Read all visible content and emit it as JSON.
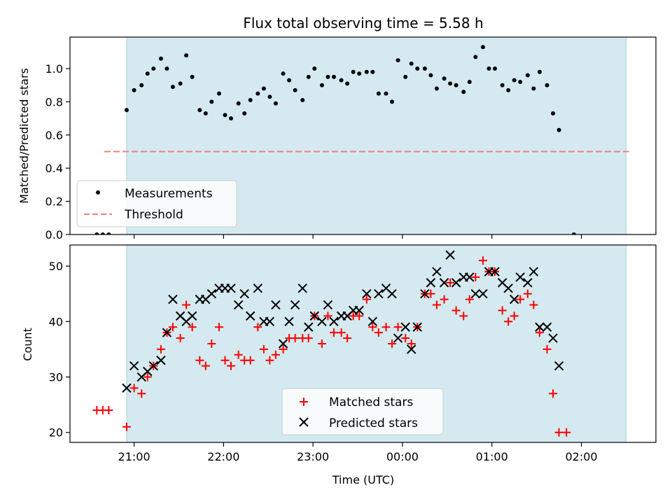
{
  "chart_data": [
    {
      "type": "scatter",
      "title": "Flux total observing time = 5.58 h",
      "xlabel": "",
      "ylabel": "Matched/Predicted stars",
      "ylim": [
        0,
        1.19
      ],
      "yticks": [
        "0.0",
        "0.2",
        "0.4",
        "0.6",
        "0.8",
        "1.0"
      ],
      "x_ticks": [
        "21:00",
        "22:00",
        "23:00",
        "00:00",
        "01:00",
        "02:00"
      ],
      "shaded_range": [
        "20:55",
        "02:30"
      ],
      "threshold": 0.5,
      "legend": {
        "placement": "lower-left",
        "entries": [
          "Measurements",
          "Threshold"
        ]
      },
      "colors": {
        "shade": "#d4eaf0",
        "threshold": "#f08080",
        "measurements": "#000000"
      },
      "series": [
        {
          "name": "Measurements",
          "points": [
            [
              "20:35",
              0.0
            ],
            [
              "20:39",
              0.0
            ],
            [
              "20:43",
              0.0
            ],
            [
              "20:55",
              0.75
            ],
            [
              "21:00",
              0.87
            ],
            [
              "21:05",
              0.9
            ],
            [
              "21:09",
              0.97
            ],
            [
              "21:13",
              1.0
            ],
            [
              "21:18",
              1.06
            ],
            [
              "21:22",
              1.0
            ],
            [
              "21:26",
              0.89
            ],
            [
              "21:31",
              0.91
            ],
            [
              "21:35",
              1.08
            ],
            [
              "21:39",
              0.95
            ],
            [
              "21:44",
              0.75
            ],
            [
              "21:48",
              0.73
            ],
            [
              "21:52",
              0.8
            ],
            [
              "21:57",
              0.85
            ],
            [
              "22:01",
              0.72
            ],
            [
              "22:05",
              0.7
            ],
            [
              "22:10",
              0.79
            ],
            [
              "22:14",
              0.73
            ],
            [
              "22:18",
              0.81
            ],
            [
              "22:23",
              0.85
            ],
            [
              "22:27",
              0.88
            ],
            [
              "22:31",
              0.83
            ],
            [
              "22:35",
              0.79
            ],
            [
              "22:40",
              0.97
            ],
            [
              "22:44",
              0.93
            ],
            [
              "22:48",
              0.87
            ],
            [
              "22:53",
              0.81
            ],
            [
              "22:57",
              0.95
            ],
            [
              "23:01",
              1.0
            ],
            [
              "23:06",
              0.9
            ],
            [
              "23:10",
              0.95
            ],
            [
              "23:14",
              0.95
            ],
            [
              "23:19",
              0.93
            ],
            [
              "23:23",
              0.91
            ],
            [
              "23:27",
              0.98
            ],
            [
              "23:31",
              0.97
            ],
            [
              "23:36",
              0.98
            ],
            [
              "23:40",
              0.98
            ],
            [
              "23:44",
              0.85
            ],
            [
              "23:49",
              0.85
            ],
            [
              "23:53",
              0.8
            ],
            [
              "23:57",
              1.05
            ],
            [
              "00:02",
              0.95
            ],
            [
              "00:06",
              1.03
            ],
            [
              "00:10",
              1.0
            ],
            [
              "00:15",
              1.0
            ],
            [
              "00:19",
              0.96
            ],
            [
              "00:23",
              0.88
            ],
            [
              "00:28",
              0.94
            ],
            [
              "00:32",
              0.91
            ],
            [
              "00:36",
              0.9
            ],
            [
              "00:41",
              0.86
            ],
            [
              "00:45",
              0.92
            ],
            [
              "00:49",
              1.07
            ],
            [
              "00:54",
              1.13
            ],
            [
              "00:58",
              1.0
            ],
            [
              "01:02",
              1.0
            ],
            [
              "01:07",
              0.9
            ],
            [
              "01:11",
              0.87
            ],
            [
              "01:15",
              0.93
            ],
            [
              "01:19",
              0.92
            ],
            [
              "01:24",
              0.96
            ],
            [
              "01:28",
              0.88
            ],
            [
              "01:32",
              0.98
            ],
            [
              "01:37",
              0.9
            ],
            [
              "01:41",
              0.73
            ],
            [
              "01:45",
              0.63
            ],
            [
              "01:55",
              0.0
            ]
          ]
        }
      ]
    },
    {
      "type": "scatter",
      "title": "",
      "xlabel": "Time (UTC)",
      "ylabel": "Count",
      "ylim": [
        18.2,
        53.8
      ],
      "yticks": [
        "20",
        "30",
        "40",
        "50"
      ],
      "x_ticks": [
        "21:00",
        "22:00",
        "23:00",
        "00:00",
        "01:00",
        "02:00"
      ],
      "shaded_range": [
        "20:55",
        "02:30"
      ],
      "legend": {
        "placement": "lower-center",
        "entries": [
          "Matched stars",
          "Predicted stars"
        ]
      },
      "colors": {
        "shade": "#d4eaf0",
        "matched": "#ff0000",
        "predicted": "#000000"
      },
      "series": [
        {
          "name": "Matched stars",
          "marker": "+",
          "points": [
            [
              "20:35",
              24
            ],
            [
              "20:39",
              24
            ],
            [
              "20:43",
              24
            ],
            [
              "20:55",
              21
            ],
            [
              "21:00",
              28
            ],
            [
              "21:05",
              27
            ],
            [
              "21:09",
              30
            ],
            [
              "21:13",
              32
            ],
            [
              "21:18",
              35
            ],
            [
              "21:22",
              38
            ],
            [
              "21:26",
              39
            ],
            [
              "21:31",
              37
            ],
            [
              "21:35",
              43
            ],
            [
              "21:39",
              39
            ],
            [
              "21:44",
              33
            ],
            [
              "21:48",
              32
            ],
            [
              "21:52",
              36
            ],
            [
              "21:57",
              39
            ],
            [
              "22:01",
              33
            ],
            [
              "22:05",
              32
            ],
            [
              "22:10",
              34
            ],
            [
              "22:14",
              33
            ],
            [
              "22:18",
              33
            ],
            [
              "22:23",
              39
            ],
            [
              "22:27",
              35
            ],
            [
              "22:31",
              33
            ],
            [
              "22:35",
              34
            ],
            [
              "22:40",
              35
            ],
            [
              "22:44",
              37
            ],
            [
              "22:48",
              37
            ],
            [
              "22:53",
              37
            ],
            [
              "22:57",
              37
            ],
            [
              "23:01",
              41
            ],
            [
              "23:06",
              36
            ],
            [
              "23:10",
              41
            ],
            [
              "23:14",
              38
            ],
            [
              "23:19",
              38
            ],
            [
              "23:23",
              37
            ],
            [
              "23:27",
              41
            ],
            [
              "23:31",
              41
            ],
            [
              "23:36",
              44
            ],
            [
              "23:40",
              39
            ],
            [
              "23:44",
              38
            ],
            [
              "23:49",
              39
            ],
            [
              "23:53",
              36
            ],
            [
              "23:57",
              39
            ],
            [
              "00:02",
              37
            ],
            [
              "00:06",
              36
            ],
            [
              "00:10",
              39
            ],
            [
              "00:15",
              45
            ],
            [
              "00:19",
              45
            ],
            [
              "00:23",
              43
            ],
            [
              "00:28",
              44
            ],
            [
              "00:32",
              47
            ],
            [
              "00:36",
              42
            ],
            [
              "00:41",
              41
            ],
            [
              "00:45",
              44
            ],
            [
              "00:49",
              48
            ],
            [
              "00:54",
              51
            ],
            [
              "00:58",
              49
            ],
            [
              "01:02",
              49
            ],
            [
              "01:07",
              42
            ],
            [
              "01:11",
              40
            ],
            [
              "01:15",
              41
            ],
            [
              "01:19",
              44
            ],
            [
              "01:24",
              45
            ],
            [
              "01:28",
              43
            ],
            [
              "01:32",
              38
            ],
            [
              "01:37",
              35
            ],
            [
              "01:41",
              27
            ],
            [
              "01:45",
              20
            ],
            [
              "01:50",
              20
            ]
          ]
        },
        {
          "name": "Predicted stars",
          "marker": "x",
          "points": [
            [
              "20:55",
              28
            ],
            [
              "21:00",
              32
            ],
            [
              "21:05",
              30
            ],
            [
              "21:09",
              31
            ],
            [
              "21:13",
              32
            ],
            [
              "21:18",
              33
            ],
            [
              "21:22",
              38
            ],
            [
              "21:26",
              44
            ],
            [
              "21:31",
              41
            ],
            [
              "21:35",
              40
            ],
            [
              "21:39",
              41
            ],
            [
              "21:44",
              44
            ],
            [
              "21:48",
              44
            ],
            [
              "21:52",
              45
            ],
            [
              "21:57",
              46
            ],
            [
              "22:01",
              46
            ],
            [
              "22:05",
              46
            ],
            [
              "22:10",
              43
            ],
            [
              "22:14",
              45
            ],
            [
              "22:18",
              41
            ],
            [
              "22:23",
              46
            ],
            [
              "22:27",
              40
            ],
            [
              "22:31",
              40
            ],
            [
              "22:35",
              43
            ],
            [
              "22:40",
              36
            ],
            [
              "22:44",
              40
            ],
            [
              "22:48",
              43
            ],
            [
              "22:53",
              46
            ],
            [
              "22:57",
              39
            ],
            [
              "23:01",
              41
            ],
            [
              "23:06",
              40
            ],
            [
              "23:10",
              43
            ],
            [
              "23:14",
              40
            ],
            [
              "23:19",
              41
            ],
            [
              "23:23",
              41
            ],
            [
              "23:27",
              42
            ],
            [
              "23:31",
              42
            ],
            [
              "23:36",
              45
            ],
            [
              "23:40",
              40
            ],
            [
              "23:44",
              45
            ],
            [
              "23:49",
              46
            ],
            [
              "23:53",
              45
            ],
            [
              "23:57",
              37
            ],
            [
              "00:02",
              39
            ],
            [
              "00:06",
              35
            ],
            [
              "00:10",
              39
            ],
            [
              "00:15",
              45
            ],
            [
              "00:19",
              47
            ],
            [
              "00:23",
              49
            ],
            [
              "00:28",
              47
            ],
            [
              "00:32",
              52
            ],
            [
              "00:36",
              47
            ],
            [
              "00:41",
              48
            ],
            [
              "00:45",
              48
            ],
            [
              "00:49",
              45
            ],
            [
              "00:54",
              45
            ],
            [
              "00:58",
              49
            ],
            [
              "01:02",
              49
            ],
            [
              "01:07",
              47
            ],
            [
              "01:11",
              46
            ],
            [
              "01:15",
              44
            ],
            [
              "01:19",
              48
            ],
            [
              "01:24",
              47
            ],
            [
              "01:28",
              49
            ],
            [
              "01:32",
              39
            ],
            [
              "01:37",
              39
            ],
            [
              "01:41",
              37
            ],
            [
              "01:45",
              32
            ]
          ]
        }
      ]
    }
  ]
}
